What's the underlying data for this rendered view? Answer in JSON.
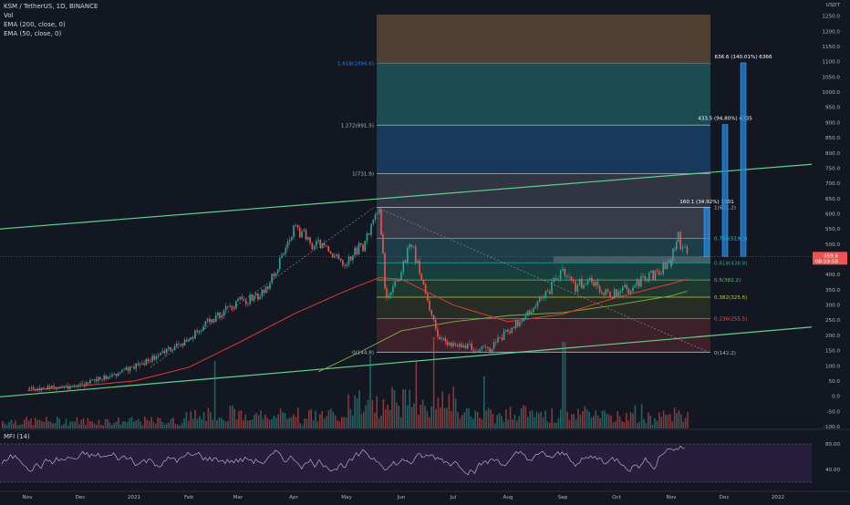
{
  "header": {
    "symbol_line": "KSM / TetherUS, 1D, BINANCE",
    "vol_label": "Vol",
    "ema200_label": "EMA (200, close, 0)",
    "ema50_label": "EMA (50, close, 0)",
    "mfi_label": "MFI (14)"
  },
  "colors": {
    "background": "#131722",
    "up_candle": "#26a69a",
    "down_candle": "#ef5350",
    "ema50": "#e53935",
    "ema200": "#7cb342",
    "trendline": "#5fd38d",
    "mfi_line": "#c8c8c8",
    "mfi_band": "#2a1e3f",
    "price_badge": "#ef5350",
    "projection_bar": "#1e88e5"
  },
  "chart_data": {
    "type": "candlestick",
    "title": "KSM / TetherUS, 1D, BINANCE",
    "y_axis": {
      "unit_label": "USDT",
      "ticks": [
        "1250.0",
        "1200.0",
        "1150.0",
        "1100.0",
        "1050.0",
        "1000.0",
        "950.0",
        "900.0",
        "850.0",
        "800.0",
        "750.0",
        "700.0",
        "650.0",
        "600.0",
        "550.0",
        "500.0",
        "450.0",
        "400.0",
        "350.0",
        "300.0",
        "250.0",
        "200.0",
        "150.0",
        "100.0",
        "50.0",
        "0.0",
        "-50.0",
        "-100.0"
      ],
      "range": [
        -115,
        1255
      ]
    },
    "x_axis": {
      "ticks": [
        "Nov",
        "Dec",
        "2021",
        "Feb",
        "Mar",
        "Apr",
        "May",
        "Jun",
        "Jul",
        "Aug",
        "Sep",
        "Oct",
        "Nov",
        "Dec",
        "2022"
      ]
    },
    "current_price": {
      "price": "459.6",
      "countdown": "08:59:58"
    },
    "price_path": [
      [
        "Nov",
        22
      ],
      [
        "Dec",
        35
      ],
      [
        "2021",
        95
      ],
      [
        "Feb",
        185
      ],
      [
        "Feb 15",
        255
      ],
      [
        "Mar",
        310
      ],
      [
        "Mar 15",
        335
      ],
      [
        "Mar 31",
        545
      ],
      [
        "Apr 15",
        495
      ],
      [
        "Apr 30",
        440
      ],
      [
        "May 10",
        495
      ],
      [
        "May 19",
        605
      ],
      [
        "May 23",
        300
      ],
      [
        "Jun",
        415
      ],
      [
        "Jun 7",
        505
      ],
      [
        "Jun 15",
        350
      ],
      [
        "Jun 22",
        185
      ],
      [
        "Jul",
        175
      ],
      [
        "Jul 10",
        160
      ],
      [
        "Jul 20",
        150
      ],
      [
        "Aug",
        215
      ],
      [
        "Aug 15",
        290
      ],
      [
        "Aug 25",
        360
      ],
      [
        "Sep",
        420
      ],
      [
        "Sep 7",
        360
      ],
      [
        "Sep 15",
        380
      ],
      [
        "Sep 25",
        335
      ],
      [
        "Oct",
        340
      ],
      [
        "Oct 10",
        360
      ],
      [
        "Oct 20",
        395
      ],
      [
        "Oct 31",
        445
      ],
      [
        "Nov",
        455
      ],
      [
        "Nov 5",
        520
      ],
      [
        "Nov 10",
        460
      ]
    ],
    "ema50_path": [
      [
        "Nov",
        18
      ],
      [
        "2021",
        50
      ],
      [
        "Feb",
        95
      ],
      [
        "Mar",
        175
      ],
      [
        "Apr",
        270
      ],
      [
        "Apr 30",
        345
      ],
      [
        "May 19",
        390
      ],
      [
        "Jun",
        385
      ],
      [
        "Jul",
        300
      ],
      [
        "Aug",
        245
      ],
      [
        "Sep",
        270
      ],
      [
        "Oct",
        325
      ],
      [
        "Nov",
        370
      ],
      [
        "Nov 10",
        385
      ]
    ],
    "ema200_path": [
      [
        "Apr 15",
        80
      ],
      [
        "May 10",
        150
      ],
      [
        "Jun",
        215
      ],
      [
        "Jul",
        245
      ],
      [
        "Aug",
        265
      ],
      [
        "Sep",
        275
      ],
      [
        "Oct",
        300
      ],
      [
        "Nov",
        330
      ],
      [
        "Nov 10",
        345
      ]
    ],
    "upper_channel": {
      "from": [
        "Nov",
        550
      ],
      "to": [
        "2022 15",
        765
      ]
    },
    "lower_channel": {
      "from": [
        "Nov",
        -2
      ],
      "to": [
        "2022 15",
        230
      ]
    },
    "fib_retracement": [
      {
        "label": "0(144.8)",
        "value": 144.8,
        "color": "#b2b5be"
      },
      {
        "label": "0.236(255.5)",
        "value": 255.5,
        "color": "#ef5350"
      },
      {
        "label": "0.382(325.6)",
        "value": 325.6,
        "color": "#c0ca33"
      },
      {
        "label": "0.5(382.2)",
        "value": 382.2,
        "color": "#66bb6a"
      },
      {
        "label": "0.618(438.8)",
        "value": 438.8,
        "color": "#26a69a"
      },
      {
        "label": "0.786(519.3)",
        "value": 519.3,
        "color": "#26c6da"
      },
      {
        "label": "1(621.2)",
        "value": 621.2,
        "color": "#b2b5be"
      },
      {
        "label": "1(731.9)",
        "value": 731.9,
        "color": "#b2b5be"
      },
      {
        "label": "1.272(891.5)",
        "value": 891.5,
        "color": "#b2b5be"
      },
      {
        "label": "1.618(1094.6)",
        "value": 1094.6,
        "color": "#1e88e5"
      }
    ],
    "fib_end_label": "0(142.2)",
    "measurements": [
      {
        "label": "160.1 (34.92%) 1601",
        "from": 459.6,
        "to": 619.7
      },
      {
        "label": "433.5 (94.80%) 4335",
        "from": 459.6,
        "to": 893.1
      },
      {
        "label": "636.6 (140.01%) 6366",
        "from": 459.6,
        "to": 1096.2
      }
    ],
    "mfi": {
      "ticks": [
        "80.00",
        "40.00"
      ],
      "upper": 80,
      "lower": 20
    }
  }
}
